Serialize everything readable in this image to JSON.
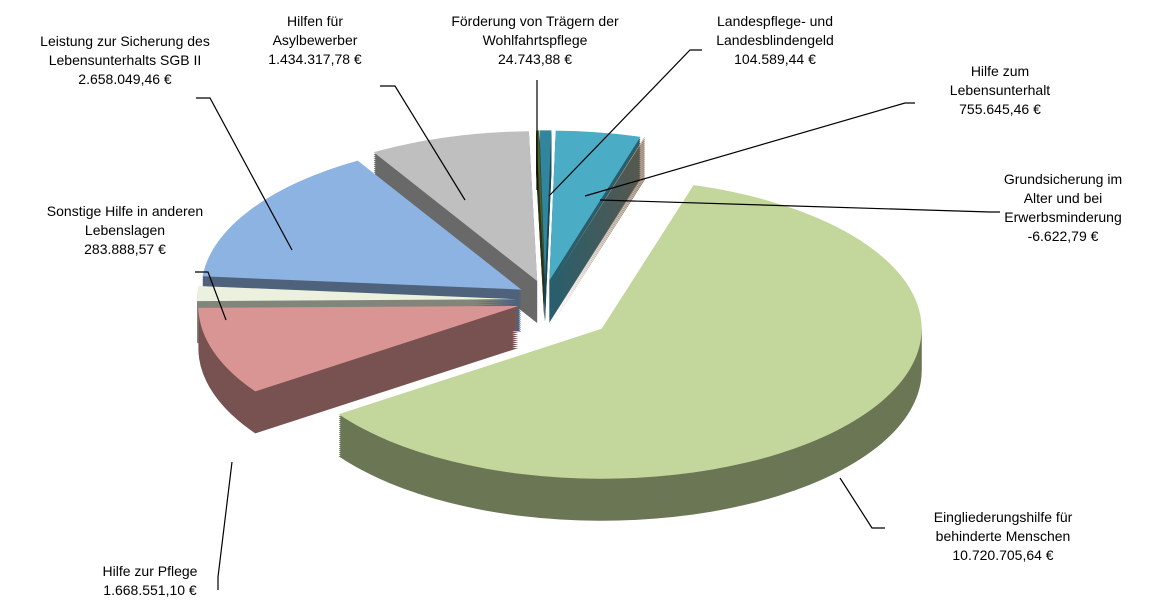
{
  "chart_data": {
    "type": "pie",
    "categories": [
      "Hilfe zum Lebensunterhalt",
      "Grundsicherung im Alter und bei Erwerbsminderung",
      "Eingliederungshilfe für behinderte Menschen",
      "Hilfe zur Pflege",
      "Sonstige Hilfe in anderen Lebenslagen",
      "Leistung zur Sicherung des Lebensunterhalts  SGB II",
      "Hilfen für Asylbewerber",
      "Förderung von Trägern der Wohlfahrtspflege",
      "Landespflege- und Landesblindengeld"
    ],
    "values": [
      755645.46,
      -6622.79,
      10720705.64,
      1668551.1,
      283888.57,
      2658049.46,
      1434317.78,
      24743.88,
      104589.44
    ],
    "value_labels": [
      "755.645,46 €",
      "-6.622,79 €",
      "10.720.705,64 €",
      "1.668.551,10 €",
      "283.888,57 €",
      "2.658.049,46 €",
      "1.434.317,78 €",
      "24.743,88 €",
      "104.589,44 €"
    ],
    "colors": [
      "#4bacc6",
      "#d99a6c",
      "#c3d69b",
      "#d99594",
      "#ebf1de",
      "#8db3e2",
      "#bfbfbf",
      "#4f6228",
      "#31859c"
    ]
  }
}
